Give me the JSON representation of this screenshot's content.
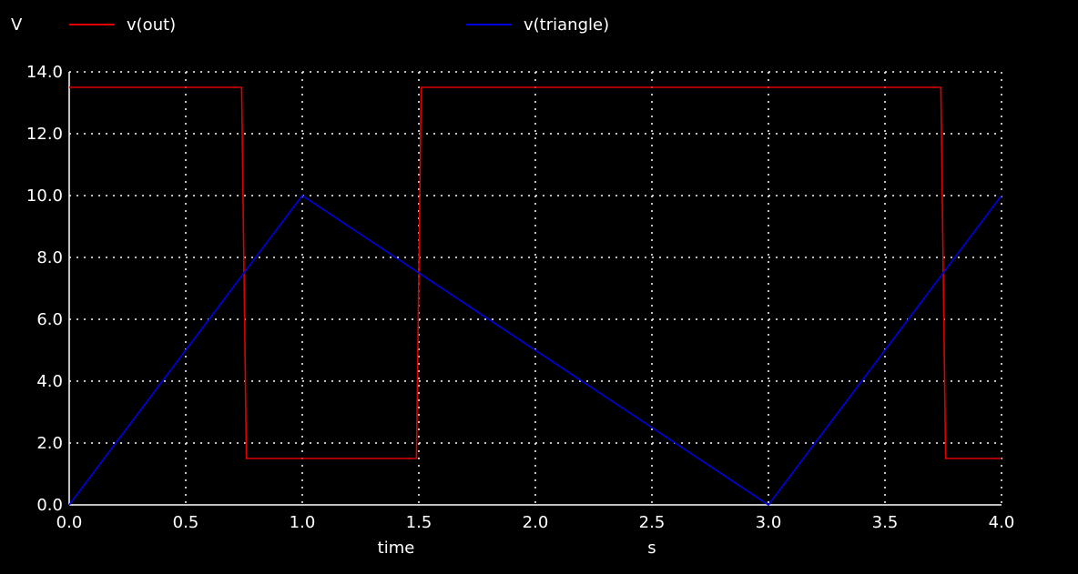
{
  "colors": {
    "background": "#000000",
    "foreground": "#ffffff",
    "grid": "#ffffff",
    "out": "#e00000",
    "triangle": "#0000e0"
  },
  "chart_data": {
    "type": "line",
    "ylabel": "V",
    "xlabel": "time",
    "xunit": "s",
    "xlim": [
      0.0,
      4.0
    ],
    "ylim": [
      0.0,
      14.0
    ],
    "grid": true,
    "legend_placement": "top",
    "xticks": [
      0.0,
      0.5,
      1.0,
      1.5,
      2.0,
      2.5,
      3.0,
      3.5,
      4.0
    ],
    "xtick_labels": [
      "0.0",
      "0.5",
      "1.0",
      "1.5",
      "2.0",
      "2.5",
      "3.0",
      "3.5",
      "4.0"
    ],
    "yticks": [
      0.0,
      2.0,
      4.0,
      6.0,
      8.0,
      10.0,
      12.0,
      14.0
    ],
    "ytick_labels": [
      "0.0",
      "2.0",
      "4.0",
      "6.0",
      "8.0",
      "10.0",
      "12.0",
      "14.0"
    ],
    "series": [
      {
        "name": "v(out)",
        "color": "#e00000",
        "x": [
          0.0,
          0.74,
          0.76,
          1.49,
          1.51,
          3.74,
          3.76,
          4.0
        ],
        "y": [
          13.5,
          13.5,
          1.5,
          1.5,
          13.5,
          13.5,
          1.5,
          1.5
        ]
      },
      {
        "name": "v(triangle)",
        "color": "#0000e0",
        "x": [
          0.0,
          1.0,
          3.0,
          4.0
        ],
        "y": [
          0.0,
          10.0,
          0.0,
          10.0
        ]
      }
    ]
  }
}
